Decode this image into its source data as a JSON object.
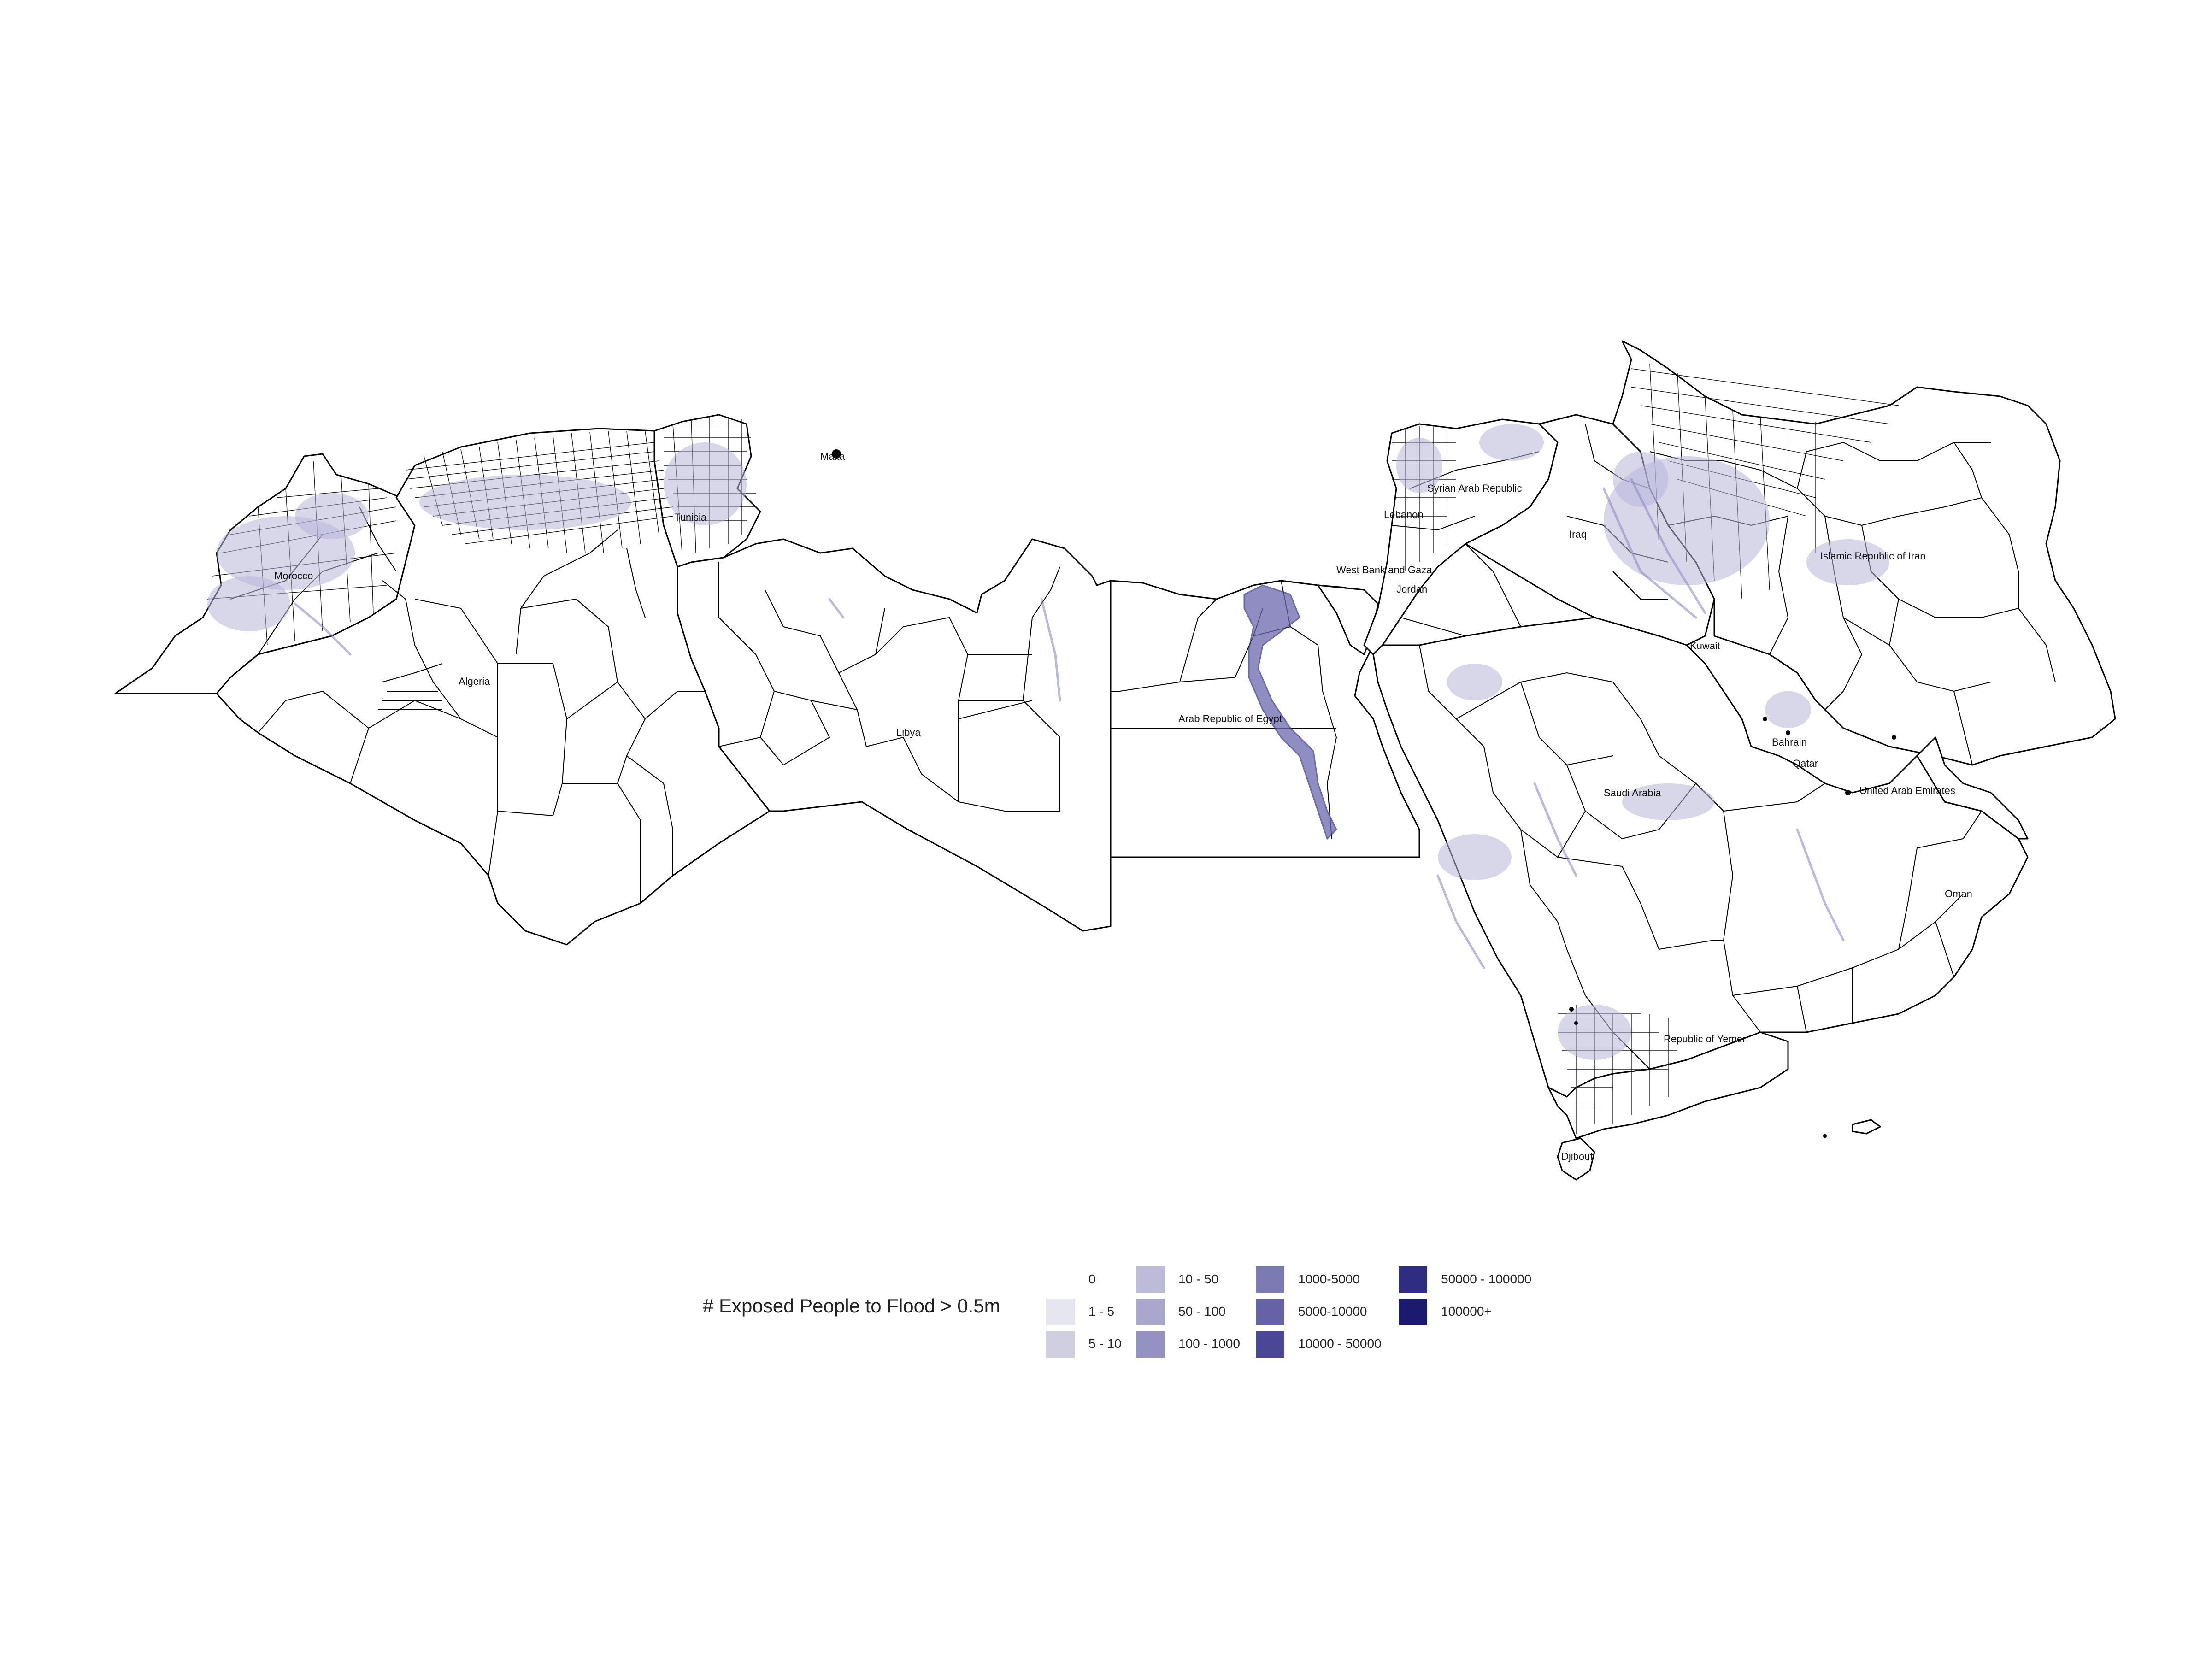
{
  "map": {
    "country_labels": {
      "morocco": "Morocco",
      "algeria": "Algeria",
      "tunisia": "Tunisia",
      "malta": "Malta",
      "libya": "Libya",
      "egypt": "Arab Republic of Egypt",
      "syria": "Syrian Arab Republic",
      "lebanon": "Lebanon",
      "west_bank": "West Bank and Gaza",
      "jordan": "Jordan",
      "iraq": "Iraq",
      "iran": "Islamic Republic of Iran",
      "kuwait": "Kuwait",
      "bahrain": "Bahrain",
      "qatar": "Qatar",
      "saudi": "Saudi Arabia",
      "uae": "United Arab Emirates",
      "oman": "Oman",
      "yemen": "Republic of Yemen",
      "djibouti": "Djibouti"
    }
  },
  "legend": {
    "title": "# Exposed People to Flood > 0.5m",
    "classes": [
      {
        "label": "0",
        "color": "#ffffff"
      },
      {
        "label": "1 - 5",
        "color": "#e6e6f0"
      },
      {
        "label": "5 - 10",
        "color": "#d0cfe2"
      },
      {
        "label": "10 - 50",
        "color": "#bdbcd8"
      },
      {
        "label": "50 - 100",
        "color": "#a9a8cc"
      },
      {
        "label": "100 - 1000",
        "color": "#9492c0"
      },
      {
        "label": "1000-5000",
        "color": "#7c7ab3"
      },
      {
        "label": "5000-10000",
        "color": "#6563a6"
      },
      {
        "label": "10000 - 50000",
        "color": "#4a4896"
      },
      {
        "label": "50000 - 100000",
        "color": "#2f2d82"
      },
      {
        "label": "100000+",
        "color": "#1b1a6c"
      }
    ]
  }
}
